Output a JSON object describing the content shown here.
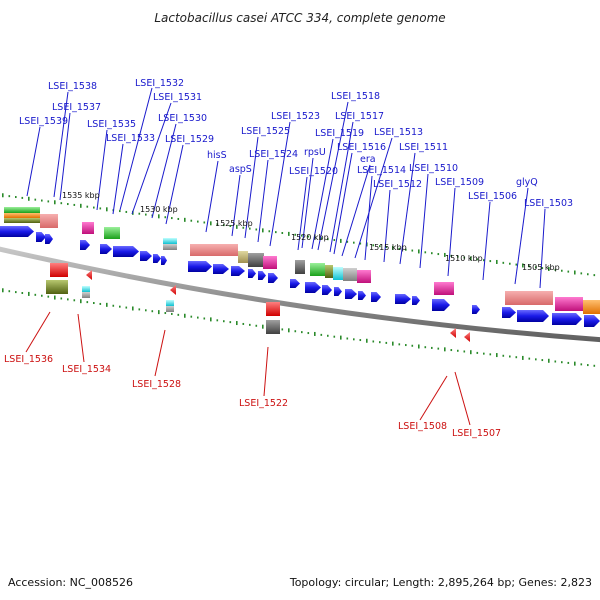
{
  "title": "Lactobacillus casei ATCC 334, complete genome",
  "footer": {
    "accession": "Accession: NC_008526",
    "info": "Topology: circular; Length: 2,895,264 bp; Genes: 2,823"
  },
  "scale_labels": [
    "1535 kbp",
    "1530 kbp",
    "1525 kbp",
    "1520 kbp",
    "1515 kbp",
    "1510 kbp",
    "1505 kbp"
  ],
  "forward_labels": [
    "LSEI_1538",
    "LSEI_1537",
    "LSEI_1539",
    "LSEI_1532",
    "LSEI_1531",
    "LSEI_1535",
    "LSEI_1530",
    "LSEI_1533",
    "LSEI_1529",
    "hisS",
    "aspS",
    "LSEI_1525",
    "LSEI_1524",
    "LSEI_1523",
    "LSEI_1518",
    "LSEI_1517",
    "LSEI_1519",
    "LSEI_1516",
    "rpsU",
    "era",
    "LSEI_1513",
    "LSEI_1520",
    "LSEI_1514",
    "LSEI_1512",
    "LSEI_1511",
    "LSEI_1510",
    "LSEI_1509",
    "LSEI_1506",
    "glyQ",
    "LSEI_1503"
  ],
  "reverse_labels": [
    "LSEI_1536",
    "LSEI_1534",
    "LSEI_1528",
    "LSEI_1522",
    "LSEI_1508",
    "LSEI_1507"
  ],
  "colors": {
    "forward_label": "#1a1acc",
    "reverse_label": "#cc1111",
    "gene_arrow": "#1010dd",
    "tick": "#2a8a2a",
    "backbone": "#808080"
  }
}
